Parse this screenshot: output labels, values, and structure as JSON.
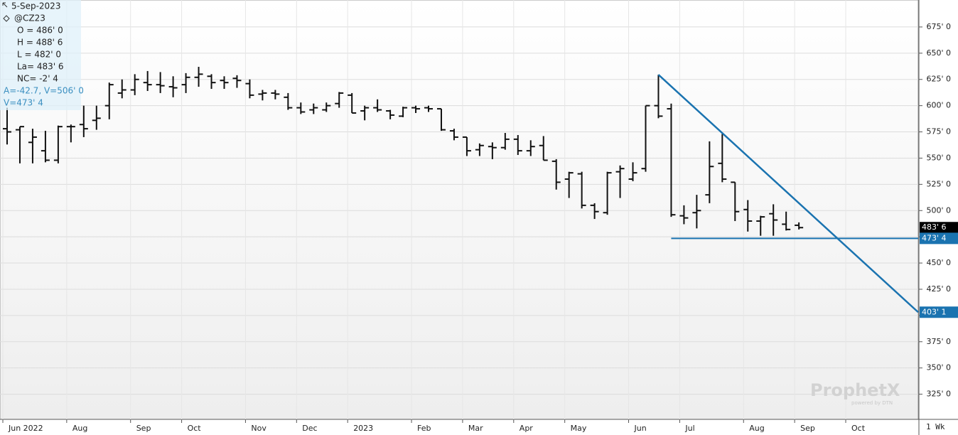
{
  "chart_data": {
    "type": "ohlc",
    "categories": [
      "Jun 2022",
      null,
      null,
      null,
      null,
      "Aug",
      null,
      null,
      null,
      null,
      "Sep",
      null,
      null,
      null,
      "Oct",
      null,
      null,
      null,
      null,
      "Nov",
      null,
      null,
      null,
      "Dec",
      null,
      null,
      null,
      "2023",
      null,
      null,
      null,
      null,
      "Feb",
      null,
      null,
      null,
      "Mar",
      null,
      null,
      null,
      "Apr",
      null,
      null,
      null,
      "May",
      null,
      null,
      null,
      null,
      "Jun",
      null,
      null,
      null,
      "Jul",
      null,
      null,
      null,
      null,
      "Aug",
      null,
      null,
      null,
      "Sep",
      null,
      null,
      null,
      "Oct"
    ],
    "open": [
      578,
      577,
      565,
      557,
      548,
      580,
      582,
      586,
      600,
      612,
      615,
      622,
      620,
      618,
      620,
      627,
      628,
      624,
      626,
      621,
      611,
      612,
      608,
      598,
      596,
      596,
      602,
      610,
      595,
      598,
      595,
      590,
      598,
      598,
      597,
      576,
      570,
      558,
      561,
      560,
      568,
      557,
      562,
      547,
      530,
      535,
      505,
      498,
      537,
      530,
      540,
      600,
      597,
      495,
      498,
      515,
      545,
      527,
      501,
      490,
      497,
      487,
      486,
      null,
      null,
      null,
      null
    ],
    "high": [
      598,
      580,
      578,
      576,
      581,
      582,
      600,
      600,
      622,
      625,
      630,
      633,
      632,
      628,
      631,
      637,
      630,
      628,
      629,
      625,
      615,
      615,
      612,
      603,
      602,
      603,
      613,
      612,
      600,
      606,
      596,
      599,
      600,
      600,
      597,
      578,
      570,
      564,
      565,
      574,
      572,
      567,
      571,
      549,
      537,
      537,
      507,
      537,
      543,
      546,
      600,
      629.5,
      602,
      505,
      515,
      566,
      573,
      527,
      510,
      495,
      506,
      499,
      488.75,
      null,
      null,
      null,
      null
    ],
    "low": [
      563,
      545,
      545,
      546,
      545,
      565,
      570,
      577,
      587,
      607,
      610,
      614,
      612,
      608,
      612,
      618,
      616,
      616,
      617,
      607,
      605,
      606,
      596,
      592,
      592,
      594,
      598,
      593,
      586,
      594,
      587,
      589,
      593,
      594,
      576,
      567,
      552,
      552,
      549,
      558,
      553,
      552,
      548,
      520,
      512,
      502,
      492,
      496,
      512,
      528,
      537,
      588,
      494,
      487,
      483,
      507,
      527,
      490,
      480,
      476,
      476,
      481,
      482,
      null,
      null,
      null,
      null
    ],
    "close": [
      575,
      580,
      570,
      548,
      580,
      580,
      578,
      588,
      620,
      615,
      625,
      620,
      619,
      617,
      627,
      630,
      622,
      622,
      624,
      610,
      612,
      611,
      598,
      594,
      598,
      600,
      612,
      593,
      598,
      596,
      591,
      598,
      597,
      597,
      577,
      570,
      557,
      562,
      560,
      568,
      557,
      561,
      548,
      527,
      536,
      505,
      499,
      536,
      540,
      536,
      600,
      590,
      496,
      493,
      500,
      542,
      530,
      499,
      490,
      494,
      491,
      482,
      483.75,
      null,
      null,
      null,
      null
    ],
    "color": "#111111",
    "ylim": [
      301,
      700.7
    ],
    "yticks": [
      {
        "value": 325,
        "label": "325' 0"
      },
      {
        "value": 350,
        "label": "350' 0"
      },
      {
        "value": 375,
        "label": "375' 0"
      },
      {
        "value": 400,
        "label": "400' 0"
      },
      {
        "value": 425,
        "label": "425' 0"
      },
      {
        "value": 450,
        "label": "450' 0"
      },
      {
        "value": 475,
        "label": "475' 0"
      },
      {
        "value": 500,
        "label": "500' 0"
      },
      {
        "value": 525,
        "label": "525' 0"
      },
      {
        "value": 550,
        "label": "550' 0"
      },
      {
        "value": 575,
        "label": "575' 0"
      },
      {
        "value": 600,
        "label": "600' 0"
      },
      {
        "value": 625,
        "label": "625' 0"
      },
      {
        "value": 650,
        "label": "650' 0"
      },
      {
        "value": 675,
        "label": "675' 0"
      }
    ],
    "grid": true,
    "last_price": {
      "value": 483.75,
      "label": "483' 6"
    },
    "trendline": {
      "start": 629.5,
      "end": 403.125,
      "end_label": "403' 1",
      "color": "#1a73b0"
    },
    "support": {
      "value": 473.5,
      "label": "473' 4",
      "color": "#1a73b0"
    },
    "legend_box": {
      "date": "5-Sep-2023",
      "symbol": "@CZ23",
      "lines": [
        "O = 486' 0",
        "H = 488' 6",
        "L = 482' 0",
        "La= 483' 6",
        "NC= -2' 4"
      ],
      "study_lines": [
        "A=-42.7, V=506' 0",
        "V=473' 4"
      ]
    },
    "period": "1 Wk",
    "watermark": {
      "brand": "ProphetX",
      "tagline": "powered by DTN"
    }
  }
}
